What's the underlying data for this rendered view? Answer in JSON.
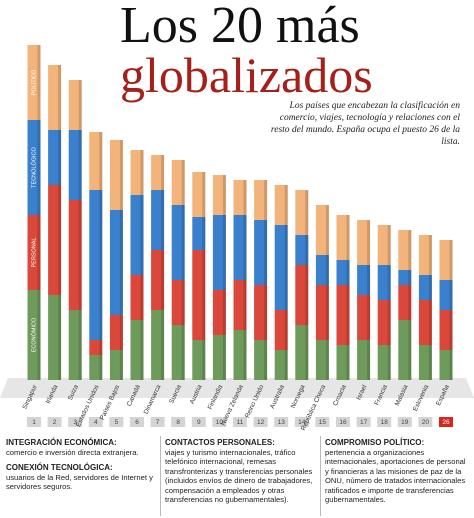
{
  "chart_data": {
    "type": "stacked-bar",
    "title": "Los 20 más",
    "title2": "globalizados",
    "subtitle": "Los países que encabezan la clasificación en comercio, viajes, tecnología y relaciones con el resto del mundo. España ocupa el puesto 26 de la lista.",
    "categories": [
      "Singapur",
      "Irlanda",
      "Suiza",
      "Estados Unidos",
      "Países Bajos",
      "Canadá",
      "Dinamarca",
      "Suecia",
      "Austria",
      "Finlandia",
      "Nueva Zelanda",
      "Reino Unido",
      "Australia",
      "Noruega",
      "República Checa",
      "Croacia",
      "Israel",
      "Francia",
      "Malasia",
      "Eslovenia",
      "España"
    ],
    "ranks": [
      1,
      2,
      3,
      4,
      5,
      6,
      7,
      8,
      9,
      10,
      11,
      12,
      13,
      14,
      15,
      16,
      17,
      18,
      19,
      20,
      26
    ],
    "highlight_rank_color": "#d7261e",
    "ylim": [
      0,
      340
    ],
    "series": [
      {
        "name": "ECONÓMICO",
        "color": "#6e9a5c",
        "values": [
          90,
          85,
          70,
          25,
          30,
          60,
          70,
          55,
          40,
          45,
          50,
          40,
          30,
          55,
          40,
          35,
          40,
          35,
          60,
          35,
          30
        ]
      },
      {
        "name": "PERSONAL",
        "color": "#d9483a",
        "values": [
          75,
          110,
          110,
          15,
          35,
          45,
          60,
          45,
          90,
          45,
          50,
          55,
          40,
          60,
          55,
          60,
          45,
          45,
          35,
          45,
          40
        ]
      },
      {
        "name": "TECNOLÓGICO",
        "color": "#3b80cc",
        "values": [
          95,
          55,
          70,
          150,
          105,
          80,
          60,
          75,
          33,
          75,
          65,
          65,
          85,
          30,
          30,
          25,
          30,
          35,
          15,
          25,
          30
        ]
      },
      {
        "name": "POLÍTICO",
        "color": "#f3b47c",
        "values": [
          75,
          65,
          50,
          58,
          70,
          45,
          35,
          45,
          45,
          40,
          35,
          40,
          40,
          45,
          50,
          45,
          45,
          40,
          40,
          40,
          40
        ]
      }
    ],
    "legend_notes": [
      {
        "heading": "INTEGRACIÓN ECONÓMICA:",
        "text": "comercio e inversión directa extranjera."
      },
      {
        "heading": "CONEXIÓN TECNOLÓGICA:",
        "text": "usuarios de la Red, servidores de Internet y servidores seguros."
      },
      {
        "heading": "CONTACTOS PERSONALES:",
        "text": "viajes y turismo internacionales, tráfico telefónico internacional, remesas transfronterizas y transferencias personales (incluidos envíos de dinero de trabajadores, compensación a empleados y otras transferencias no gubernamentales)."
      },
      {
        "heading": "COMPROMISO POLÍTICO:",
        "text": "pertenencia a organizaciones internacionales, aportaciones de personal y financieras a las misiones de paz de la ONU, número de tratados internacionales ratificados e importe de transferencias gubernamentales."
      }
    ]
  }
}
